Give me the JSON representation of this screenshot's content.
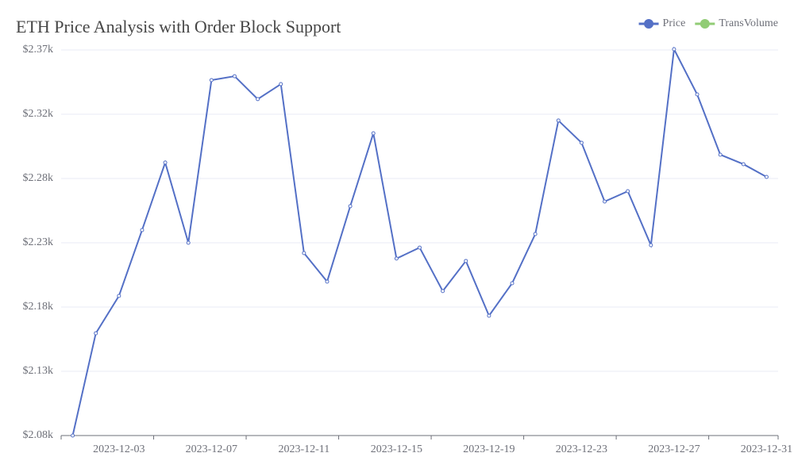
{
  "chart_data": {
    "type": "line",
    "title": "ETH Price Analysis with Order Block Support",
    "categories": [
      null,
      null,
      "2023-12-03",
      null,
      null,
      null,
      "2023-12-07",
      null,
      null,
      null,
      "2023-12-11",
      null,
      null,
      null,
      "2023-12-15",
      null,
      null,
      null,
      "2023-12-19",
      null,
      null,
      null,
      "2023-12-23",
      null,
      null,
      null,
      "2023-12-27",
      null,
      null,
      null,
      "2023-12-31"
    ],
    "series": [
      {
        "name": "Price",
        "color": "#5470c6",
        "values": [
          2084,
          2160.4,
          2188.3,
          2237.5,
          2287.9,
          2228.0,
          2349.5,
          2352.4,
          2335.3,
          2346.5,
          2220.3,
          2199.0,
          2255.3,
          2309.8,
          2216.2,
          2224.4,
          2191.9,
          2214.4,
          2173.5,
          2197.8,
          2234.5,
          2319.3,
          2302.7,
          2258.8,
          2266.5,
          2226.2,
          2372.6,
          2338.8,
          2293.8,
          2286.7,
          2277.2
        ]
      },
      {
        "name": "TransVolume",
        "color": "#91cc75",
        "values": [
          null,
          null,
          null,
          null,
          null,
          null,
          null,
          null,
          null,
          null,
          null,
          null,
          null,
          null,
          null,
          null,
          null,
          null,
          null,
          null,
          null,
          null,
          null,
          null,
          null,
          null,
          null,
          null,
          null,
          null,
          null
        ]
      }
    ],
    "ylim": [
      2084,
      2372
    ],
    "yticks": [
      {
        "value": 2084,
        "label": "$2.08k"
      },
      {
        "value": 2132,
        "label": "$2.13k"
      },
      {
        "value": 2180,
        "label": "$2.18k"
      },
      {
        "value": 2228,
        "label": "$2.23k"
      },
      {
        "value": 2276,
        "label": "$2.28k"
      },
      {
        "value": 2324,
        "label": "$2.32k"
      },
      {
        "value": 2372,
        "label": "$2.37k"
      }
    ],
    "grid": true,
    "legend": "top-right"
  }
}
